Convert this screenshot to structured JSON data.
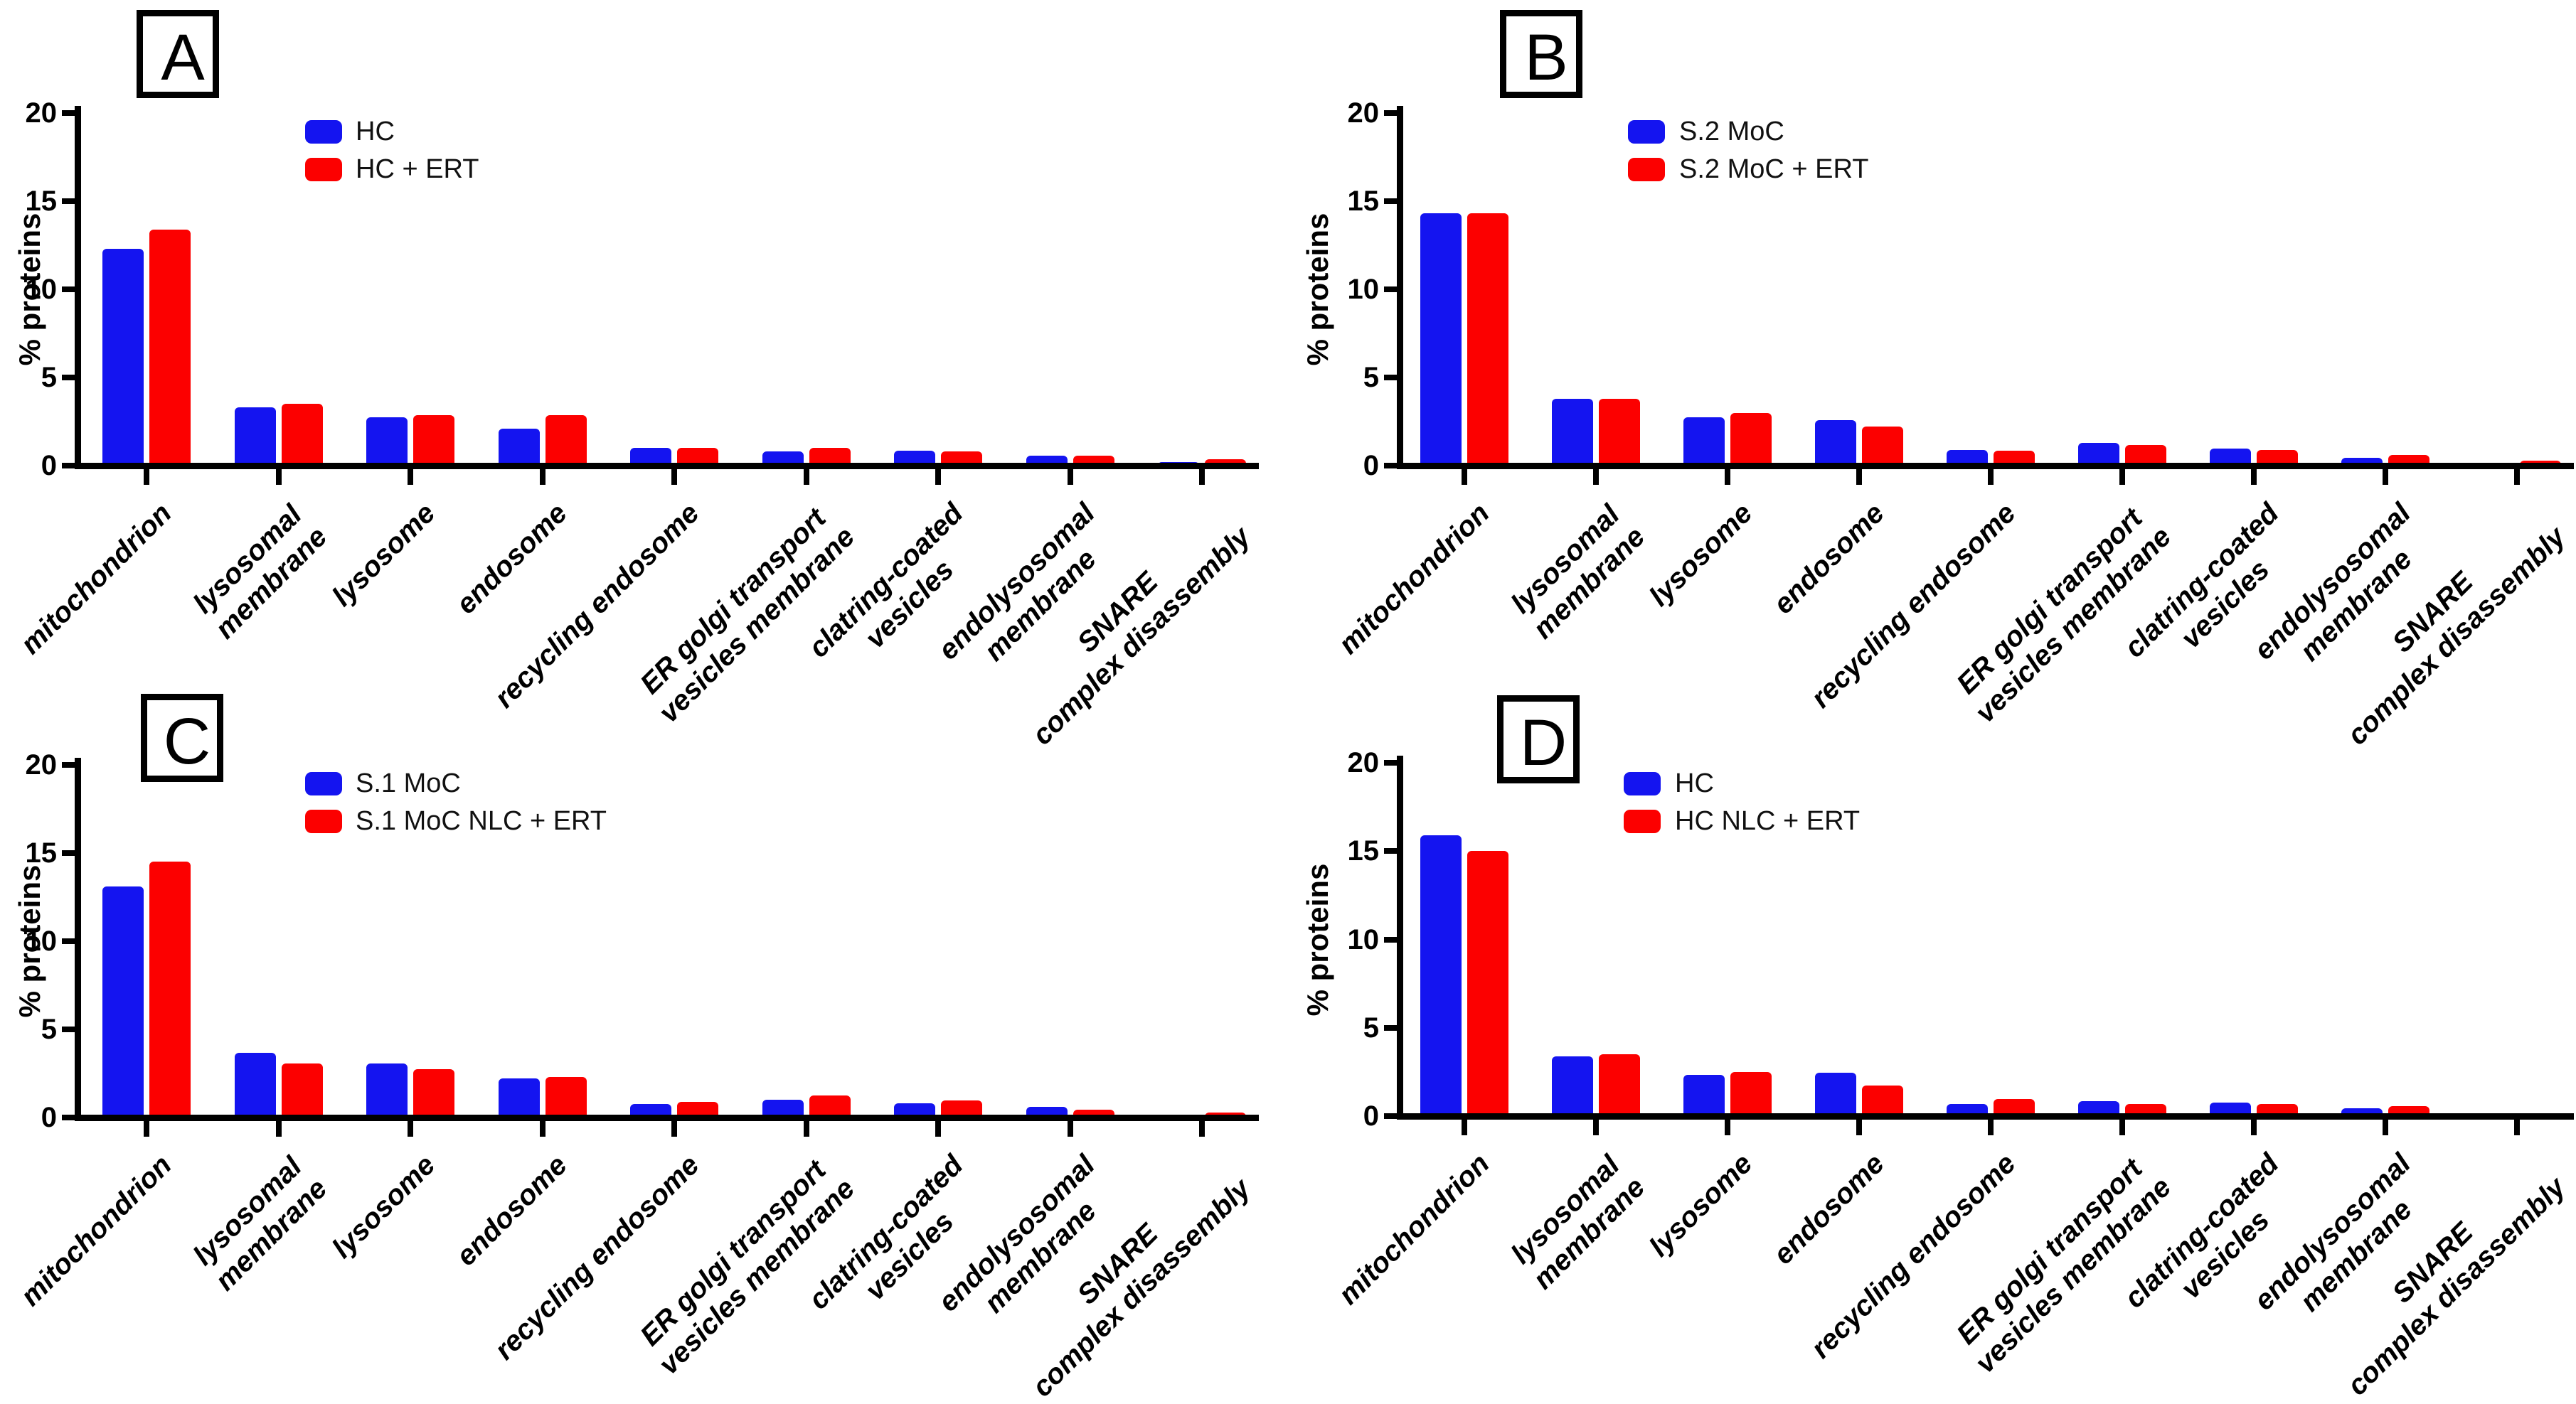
{
  "colors": {
    "bar_blue": "#1414f0",
    "bar_red": "#fc0000",
    "axis": "#000000",
    "background": "#ffffff"
  },
  "chart_data": [
    {
      "type": "bar",
      "panel": "A",
      "title": "A",
      "ylabel": "% proteins",
      "xlabel": "",
      "ylim": [
        0,
        20
      ],
      "yticks": [
        0,
        5,
        10,
        15,
        20
      ],
      "grid": false,
      "legend_position": "upper-center",
      "categories": [
        "mitochondrion",
        "lysosomal\nmembrane",
        "lysosome",
        "endosome",
        "recycling endosome",
        "ER golgi transport\nvesicles membrane",
        "clatring-coated\nvesicles",
        "endolysosomal\nmembrane",
        "SNARE\ncomplex disassembly"
      ],
      "series": [
        {
          "name": "HC",
          "color": "#1414f0",
          "values": [
            12.3,
            3.3,
            2.75,
            2.1,
            1.0,
            0.8,
            0.85,
            0.55,
            0.2
          ]
        },
        {
          "name": "HC + ERT",
          "color": "#fc0000",
          "values": [
            13.4,
            3.5,
            2.85,
            2.85,
            1.0,
            1.0,
            0.8,
            0.55,
            0.35
          ]
        }
      ]
    },
    {
      "type": "bar",
      "panel": "B",
      "title": "B",
      "ylabel": "% proteins",
      "xlabel": "",
      "ylim": [
        0,
        20
      ],
      "yticks": [
        0,
        5,
        10,
        15,
        20
      ],
      "grid": false,
      "legend_position": "upper-center",
      "categories": [
        "mitochondrion",
        "lysosomal\nmembrane",
        "lysosome",
        "endosome",
        "recycling endosome",
        "ER golgi transport\nvesicles membrane",
        "clatring-coated\nvesicles",
        "endolysosomal\nmembrane",
        "SNARE\ncomplex disassembly"
      ],
      "series": [
        {
          "name": "S.2 MoC",
          "color": "#1414f0",
          "values": [
            14.3,
            3.8,
            2.75,
            2.6,
            0.9,
            1.3,
            0.95,
            0.45,
            0.15
          ]
        },
        {
          "name": "S.2 MoC + ERT",
          "color": "#fc0000",
          "values": [
            14.3,
            3.8,
            3.0,
            2.2,
            0.85,
            1.15,
            0.9,
            0.6,
            0.3
          ]
        }
      ]
    },
    {
      "type": "bar",
      "panel": "C",
      "title": "C",
      "ylabel": "% proteins",
      "xlabel": "",
      "ylim": [
        0,
        20
      ],
      "yticks": [
        0,
        5,
        10,
        15,
        20
      ],
      "grid": false,
      "legend_position": "upper-center",
      "categories": [
        "mitochondrion",
        "lysosomal\nmembrane",
        "lysosome",
        "endosome",
        "recycling endosome",
        "ER golgi transport\nvesicles membrane",
        "clatring-coated\nvesicles",
        "endolysosomal\nmembrane",
        "SNARE\ncomplex disassembly"
      ],
      "series": [
        {
          "name": "S.1 MoC",
          "color": "#1414f0",
          "values": [
            13.1,
            3.65,
            3.05,
            2.2,
            0.75,
            1.0,
            0.8,
            0.6,
            0.15
          ]
        },
        {
          "name": "S.1 MoC NLC + ERT",
          "color": "#fc0000",
          "values": [
            14.5,
            3.05,
            2.75,
            2.3,
            0.9,
            1.25,
            0.95,
            0.45,
            0.3
          ]
        }
      ]
    },
    {
      "type": "bar",
      "panel": "D",
      "title": "D",
      "ylabel": "% proteins",
      "xlabel": "",
      "ylim": [
        0,
        20
      ],
      "yticks": [
        0,
        5,
        10,
        15,
        20
      ],
      "grid": false,
      "legend_position": "upper-center",
      "categories": [
        "mitochondrion",
        "lysosomal\nmembrane",
        "lysosome",
        "endosome",
        "recycling endosome",
        "ER golgi transport\nvesicles membrane",
        "clatring-coated\nvesicles",
        "endolysosomal\nmembrane",
        "SNARE\ncomplex disassembly"
      ],
      "series": [
        {
          "name": "HC",
          "color": "#1414f0",
          "values": [
            15.9,
            3.4,
            2.35,
            2.45,
            0.7,
            0.85,
            0.75,
            0.45,
            0.15
          ]
        },
        {
          "name": "HC NLC + ERT",
          "color": "#fc0000",
          "values": [
            15.0,
            3.5,
            2.5,
            1.75,
            0.95,
            0.7,
            0.7,
            0.55,
            0.1
          ]
        }
      ]
    }
  ]
}
